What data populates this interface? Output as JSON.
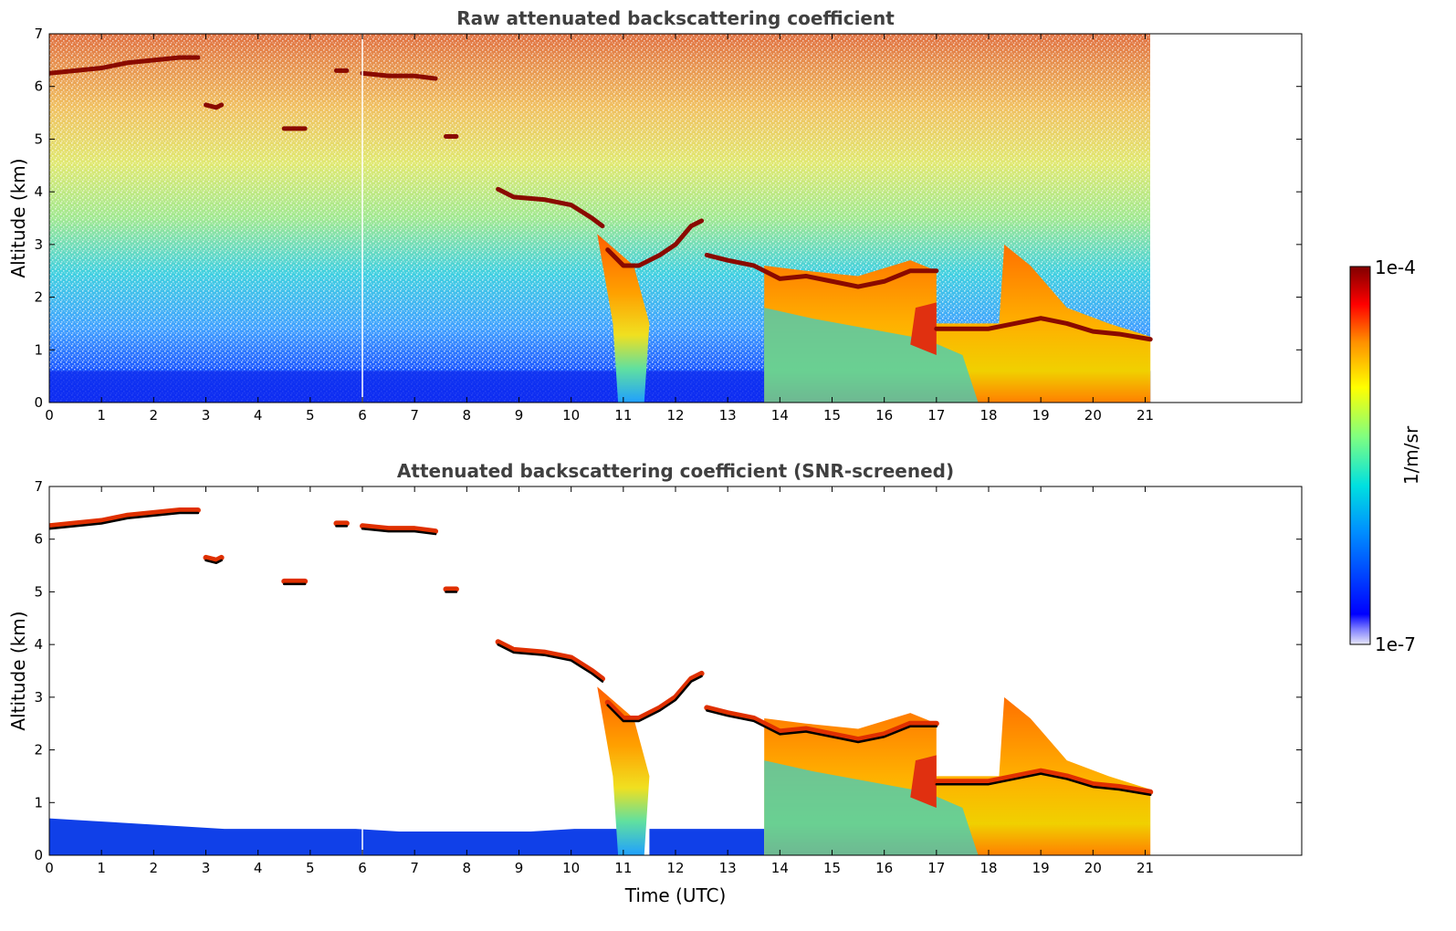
{
  "chart_data": [
    {
      "type": "heatmap",
      "title": "Raw attenuated backscattering coefficient",
      "ylabel": "Altitude (km)",
      "xlabel": "",
      "xlim": [
        0,
        24
      ],
      "ylim": [
        0,
        7
      ],
      "xticks": [
        "0",
        "1",
        "2",
        "3",
        "4",
        "5",
        "6",
        "7",
        "8",
        "9",
        "10",
        "11",
        "12",
        "13",
        "14",
        "15",
        "16",
        "17",
        "18",
        "19",
        "20",
        "21"
      ],
      "yticks": [
        "0",
        "1",
        "2",
        "3",
        "4",
        "5",
        "6",
        "7"
      ],
      "data_end_time": 21.1,
      "cloud_layers": [
        {
          "x": [
            0,
            0.5,
            1.0,
            1.5,
            2.0,
            2.5,
            2.85
          ],
          "y": [
            6.25,
            6.3,
            6.35,
            6.45,
            6.5,
            6.55,
            6.55
          ]
        },
        {
          "x": [
            3.0,
            3.2,
            3.3
          ],
          "y": [
            5.65,
            5.6,
            5.65
          ]
        },
        {
          "x": [
            4.5,
            4.8,
            4.9
          ],
          "y": [
            5.2,
            5.2,
            5.2
          ]
        },
        {
          "x": [
            5.5,
            5.7
          ],
          "y": [
            6.3,
            6.3
          ]
        },
        {
          "x": [
            6.0,
            6.5,
            7.0,
            7.4
          ],
          "y": [
            6.25,
            6.2,
            6.2,
            6.15
          ]
        },
        {
          "x": [
            7.6,
            7.8
          ],
          "y": [
            5.05,
            5.05
          ]
        },
        {
          "x": [
            8.6,
            8.9,
            9.5,
            10.0,
            10.4,
            10.6
          ],
          "y": [
            4.05,
            3.9,
            3.85,
            3.75,
            3.5,
            3.35
          ]
        },
        {
          "x": [
            10.7,
            11.0,
            11.3,
            11.7,
            12.0,
            12.3,
            12.5
          ],
          "y": [
            2.9,
            2.6,
            2.6,
            2.8,
            3.0,
            3.35,
            3.45
          ]
        },
        {
          "x": [
            12.6,
            13.0,
            13.5,
            14.0,
            14.5,
            15.0,
            15.5,
            16.0,
            16.5,
            17.0
          ],
          "y": [
            2.8,
            2.7,
            2.6,
            2.35,
            2.4,
            2.3,
            2.2,
            2.3,
            2.5,
            2.5
          ]
        },
        {
          "x": [
            17.0,
            17.5,
            18.0,
            18.5,
            19.0,
            19.5,
            20.0,
            20.5,
            21.1
          ],
          "y": [
            1.4,
            1.4,
            1.4,
            1.5,
            1.6,
            1.5,
            1.35,
            1.3,
            1.2
          ]
        }
      ]
    },
    {
      "type": "heatmap",
      "title": "Attenuated backscattering coefficient (SNR-screened)",
      "ylabel": "Altitude (km)",
      "xlabel": "Time (UTC)",
      "xlim": [
        0,
        24
      ],
      "ylim": [
        0,
        7
      ],
      "xticks": [
        "0",
        "1",
        "2",
        "3",
        "4",
        "5",
        "6",
        "7",
        "8",
        "9",
        "10",
        "11",
        "12",
        "13",
        "14",
        "15",
        "16",
        "17",
        "18",
        "19",
        "20",
        "21"
      ],
      "yticks": [
        "0",
        "1",
        "2",
        "3",
        "4",
        "5",
        "6",
        "7"
      ],
      "data_end_time": 21.1,
      "surface_layer_top_km": [
        0.7,
        0.65,
        0.6,
        0.55,
        0.5,
        0.5,
        0.5,
        0.5,
        0.45,
        0.45,
        0.45,
        0.45,
        0.5,
        0.5
      ]
    }
  ],
  "colorbar": {
    "label": "1/m/sr",
    "max_label": "1e-4",
    "min_label": "1e-7",
    "colormap": [
      "#e8e8f8",
      "#0000ff",
      "#0080ff",
      "#00e0e0",
      "#80ff80",
      "#ffff00",
      "#ff8000",
      "#ff0000",
      "#800000"
    ]
  }
}
